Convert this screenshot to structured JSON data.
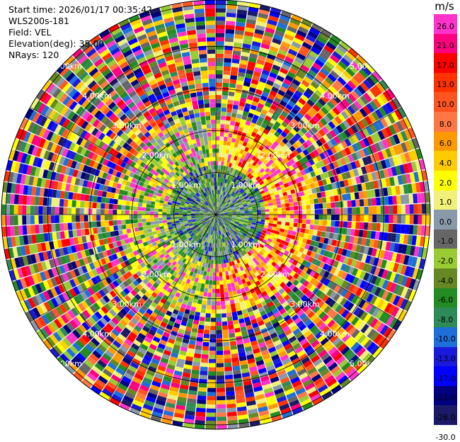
{
  "info": {
    "start_time": "Start time: 2026/01/17 00:35:42",
    "station": "WLS200s-181",
    "field": "Field: VEL",
    "elevation": "Elevation(deg): 35.00",
    "nrays": "NRays: 120"
  },
  "colorbar": {
    "unit": "m/s",
    "labels": [
      "26.0",
      "21.0",
      "17.0",
      "13.0",
      "10.0",
      "8.0",
      "6.0",
      "4.0",
      "2.0",
      "1.0",
      "0.0",
      "-1.0",
      "-2.0",
      "-4.0",
      "-6.0",
      "-8.0",
      "-10.0",
      "-13.0",
      "-17.0",
      "-21.0",
      "-26.0",
      "-30.0"
    ],
    "colors": [
      "#ff33cc",
      "#ff007f",
      "#ff0000",
      "#ff3300",
      "#ff5522",
      "#ff7744",
      "#ff9900",
      "#ffcc00",
      "#ffff00",
      "#f0f07a",
      "#8899aa",
      "#666666",
      "#99cc33",
      "#668822",
      "#228b22",
      "#2e8b57",
      "#1e6fd9",
      "#1a1adc",
      "#0000ff",
      "#00007f",
      "#1a1a66"
    ]
  },
  "chart_data": {
    "type": "heatmap",
    "subtype": "ppi-polar",
    "field": "VEL",
    "unit": "m/s",
    "elevation_deg": 35.0,
    "nrays": 120,
    "range_ring_labels": [
      "1.00km",
      "2.00km",
      "3.00km",
      "4.00km",
      "5.00km"
    ],
    "max_range_km": 5.0,
    "color_levels": [
      -30.0,
      -26.0,
      -21.0,
      -17.0,
      -13.0,
      -10.0,
      -8.0,
      -6.0,
      -4.0,
      -2.0,
      -1.0,
      0.0,
      1.0,
      2.0,
      4.0,
      6.0,
      8.0,
      10.0,
      13.0,
      17.0,
      21.0,
      26.0
    ],
    "inner_features": [
      {
        "region": "1.0-1.3km ring, NE-SE",
        "value_ms": 4.0
      },
      {
        "region": "0.3-0.6km ring, N",
        "value_ms": -6.0
      },
      {
        "region": "~1.2km, E",
        "value_ms": 21.0
      },
      {
        "region": "~1.1km, SW",
        "value_ms": 4.0
      }
    ]
  }
}
